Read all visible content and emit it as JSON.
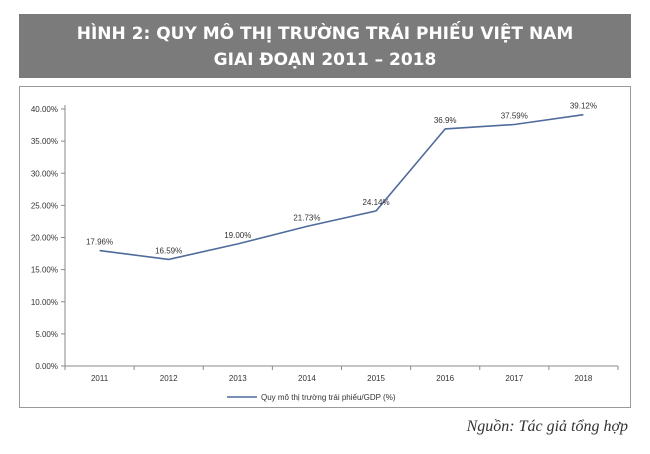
{
  "header": {
    "title_line1": "HÌNH 2: QUY MÔ THỊ TRƯỜNG TRÁI PHIẾU VIỆT NAM",
    "title_line2": "GIAI ĐOẠN 2011 – 2018"
  },
  "source": "Nguồn: Tác giả tổng hợp",
  "chart_data": {
    "type": "line",
    "x": [
      "2011",
      "2012",
      "2013",
      "2014",
      "2015",
      "2016",
      "2017",
      "2018"
    ],
    "series": [
      {
        "name": "Quy mô thị trường trái phiếu/GDP  (%)",
        "values": [
          17.96,
          16.59,
          19.0,
          21.73,
          24.14,
          36.9,
          37.59,
          39.12
        ],
        "labels": [
          "17.96%",
          "16.59%",
          "19.00%",
          "21.73%",
          "24.14%",
          "36.9%",
          "37.59%",
          "39.12%"
        ],
        "color": "#4f6b9c"
      }
    ],
    "y_ticks": [
      "0.00%",
      "5.00%",
      "10.00%",
      "15.00%",
      "20.00%",
      "25.00%",
      "30.00%",
      "35.00%",
      "40.00%"
    ],
    "ylim": [
      0,
      40
    ],
    "grid": false,
    "legend": "bottom"
  }
}
